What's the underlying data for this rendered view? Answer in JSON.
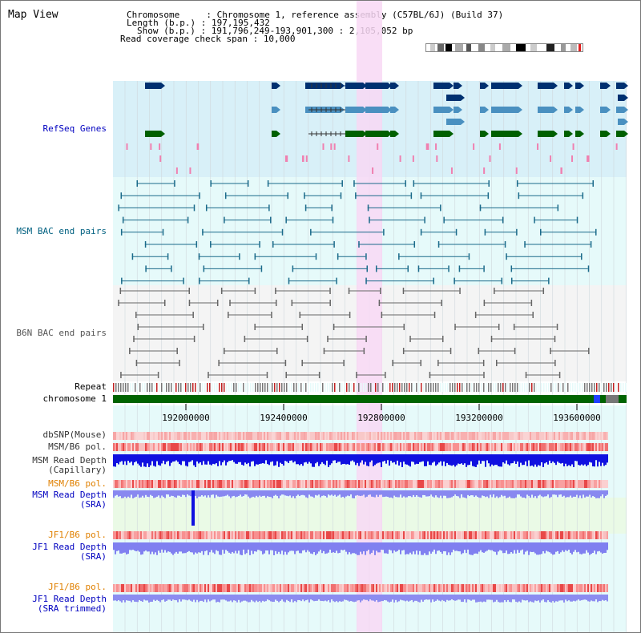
{
  "page_title": "Map View",
  "info": {
    "chromosome_key": "Chromosome     :",
    "chromosome_val": "Chromosome 1, reference assembly (C57BL/6J) (Build 37)",
    "length_key": "Length (b.p.) :",
    "length_val": "197,195,432",
    "show_key": "Show (b.p.) :",
    "show_val": "191,796,249-193,901,300 : 2,105,052 bp",
    "coverage_key": "Read coverage check span :",
    "coverage_val": "10,000"
  },
  "track_labels": {
    "refseq": "RefSeq Genes",
    "msm_bac": "MSM BAC end pairs",
    "b6n_bac": "B6N BAC end pairs",
    "repeat": "Repeat",
    "chromosome": "chromosome 1",
    "dbsnp": "dbSNP(Mouse)",
    "msm_b6_pol_1": "MSM/B6 pol.",
    "msm_read_depth_cap": "MSM Read Depth\n(Capillary)",
    "msm_b6_pol_2": "MSM/B6 pol.",
    "msm_read_depth_sra": "MSM Read Depth\n(SRA)",
    "jf1_b6_pol_1": "JF1/B6 pol.",
    "jf1_read_depth_sra": "JF1 Read Depth\n(SRA)",
    "jf1_b6_pol_2": "JF1/B6 pol.",
    "jf1_read_depth_trim": "JF1 Read Depth\n(SRA trimmed)"
  },
  "axis_ticks": [
    "192000000",
    "192400000",
    "192800000",
    "193200000",
    "193600000"
  ],
  "colors": {
    "refseq_label": "#0000c0",
    "msm_bac_label": "#006080",
    "b6n_label": "#555555",
    "pol_label": "#e08000",
    "depth_label": "#0000c0",
    "gene_dark": "#003070",
    "gene_mid": "#4a90c0",
    "gene_green": "#006000",
    "refseq_bg": "#d8f0f8",
    "bac_bg": "#e6fafa",
    "highlight": "#f8d8f4",
    "chromosome": "#006400"
  }
}
